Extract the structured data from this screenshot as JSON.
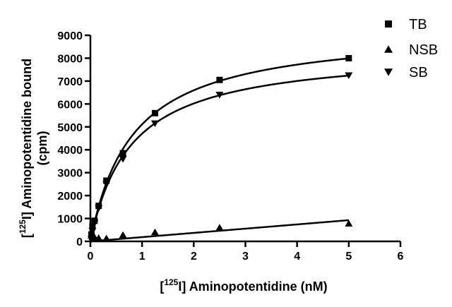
{
  "chart_data": {
    "type": "scatter",
    "xlabel": {
      "prefix": "[",
      "sup": "125",
      "suffix": "I] Aminopotentidine (nM)"
    },
    "ylabel": {
      "line1_prefix": "[",
      "line1_sup": "125",
      "line1_suffix": "I] Aminopotentidine bound",
      "line2": "(cpm)"
    },
    "xlim": [
      0,
      6
    ],
    "ylim": [
      0,
      9000
    ],
    "x_ticks": [
      0,
      1,
      2,
      3,
      4,
      5,
      6
    ],
    "y_ticks": [
      0,
      1000,
      2000,
      3000,
      4000,
      5000,
      6000,
      7000,
      8000,
      9000
    ],
    "grid": false,
    "legend_position": "top-right",
    "series": [
      {
        "name": "TB",
        "marker": "square",
        "x": [
          0.02,
          0.04,
          0.08,
          0.16,
          0.31,
          0.63,
          1.25,
          2.5,
          5.0
        ],
        "y": [
          300,
          650,
          900,
          1550,
          2650,
          3850,
          5600,
          7050,
          8000
        ]
      },
      {
        "name": "NSB",
        "marker": "triangle-up",
        "x": [
          0.02,
          0.04,
          0.08,
          0.16,
          0.31,
          0.63,
          1.25,
          2.5,
          5.0
        ],
        "y": [
          250,
          200,
          180,
          150,
          130,
          280,
          400,
          600,
          780
        ]
      },
      {
        "name": "SB",
        "marker": "triangle-down",
        "x": [
          0.02,
          0.04,
          0.08,
          0.16,
          0.31,
          0.63,
          1.25,
          2.5,
          5.0
        ],
        "y": [
          100,
          450,
          800,
          1450,
          2500,
          3600,
          5150,
          6400,
          7250
        ]
      }
    ]
  }
}
